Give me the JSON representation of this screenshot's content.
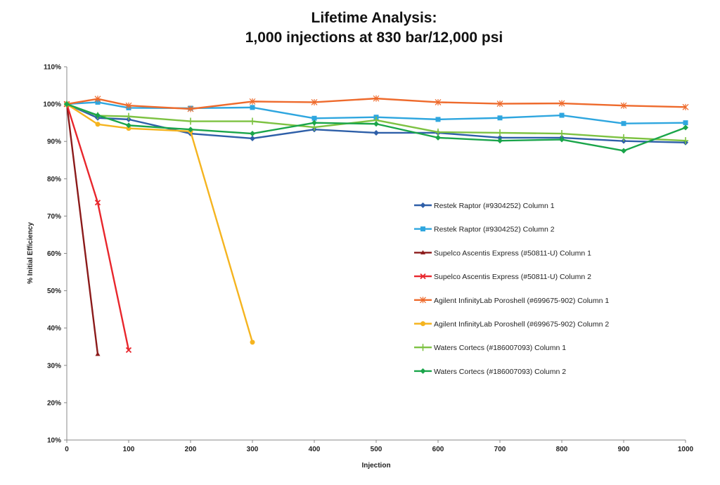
{
  "chart_data": {
    "type": "line",
    "title": [
      "Lifetime Analysis:",
      "1,000 injections at 830 bar/12,000 psi"
    ],
    "xlabel": "Injection",
    "ylabel": "% Initial Efficiency",
    "xlim": [
      0,
      1000
    ],
    "ylim": [
      10,
      110
    ],
    "xticks": [
      "0",
      "100",
      "200",
      "300",
      "400",
      "500",
      "600",
      "700",
      "800",
      "900",
      "1000"
    ],
    "yticks": [
      "10%",
      "20%",
      "30%",
      "40%",
      "50%",
      "60%",
      "70%",
      "80%",
      "90%",
      "100%",
      "110%"
    ],
    "grid": false,
    "legend_position": "center-right",
    "series": [
      {
        "name": "Restek Raptor (#9304252) Column 1",
        "color": "#2e5fa8",
        "marker": "diamond",
        "x": [
          0,
          50,
          100,
          200,
          300,
          400,
          500,
          600,
          700,
          800,
          900,
          1000
        ],
        "y": [
          100,
          96.3,
          95.9,
          92.1,
          90.8,
          93.2,
          92.3,
          92.3,
          91.0,
          91.0,
          90.1,
          89.7
        ]
      },
      {
        "name": "Restek Raptor (#9304252) Column 2",
        "color": "#2ea6df",
        "marker": "square",
        "x": [
          0,
          50,
          100,
          200,
          300,
          400,
          500,
          600,
          700,
          800,
          900,
          1000
        ],
        "y": [
          100,
          100.5,
          99.0,
          98.9,
          99.1,
          96.2,
          96.5,
          95.9,
          96.3,
          97.0,
          94.8,
          95.0
        ]
      },
      {
        "name": "Supelco Ascentis Express (#50811-U) Column 1",
        "color": "#8b1a1a",
        "marker": "triangle",
        "x": [
          0,
          50
        ],
        "y": [
          100,
          33.0
        ]
      },
      {
        "name": "Supelco Ascentis Express (#50811-U) Column 2",
        "color": "#e8262c",
        "marker": "x",
        "x": [
          0,
          50,
          100
        ],
        "y": [
          100,
          73.6,
          34.1
        ]
      },
      {
        "name": "Agilent InfinityLab Poroshell (#699675-902) Column 1",
        "color": "#ee6a2c",
        "marker": "asterisk",
        "x": [
          0,
          50,
          100,
          200,
          300,
          400,
          500,
          600,
          700,
          800,
          900,
          1000
        ],
        "y": [
          100,
          101.4,
          99.6,
          98.7,
          100.7,
          100.5,
          101.5,
          100.5,
          100.1,
          100.2,
          99.6,
          99.2
        ]
      },
      {
        "name": "Agilent InfinityLab Poroshell (#699675-902) Column 2",
        "color": "#f5b41f",
        "marker": "circle",
        "x": [
          0,
          50,
          100,
          200,
          300
        ],
        "y": [
          100,
          94.6,
          93.5,
          92.7,
          36.2
        ]
      },
      {
        "name": "Waters Cortecs (#186007093) Column 1",
        "color": "#7dc242",
        "marker": "plus",
        "x": [
          0,
          50,
          100,
          200,
          300,
          400,
          500,
          600,
          700,
          800,
          900,
          1000
        ],
        "y": [
          100,
          96.9,
          96.7,
          95.4,
          95.4,
          93.8,
          95.7,
          92.5,
          92.3,
          92.1,
          91.0,
          90.2
        ]
      },
      {
        "name": "Waters Cortecs (#186007093) Column 2",
        "color": "#1aa54a",
        "marker": "diamond",
        "x": [
          0,
          50,
          100,
          200,
          300,
          400,
          500,
          600,
          700,
          800,
          900,
          1000
        ],
        "y": [
          100,
          97.0,
          94.3,
          93.2,
          92.1,
          95.0,
          94.7,
          91.0,
          90.2,
          90.5,
          87.5,
          93.7
        ]
      }
    ]
  }
}
